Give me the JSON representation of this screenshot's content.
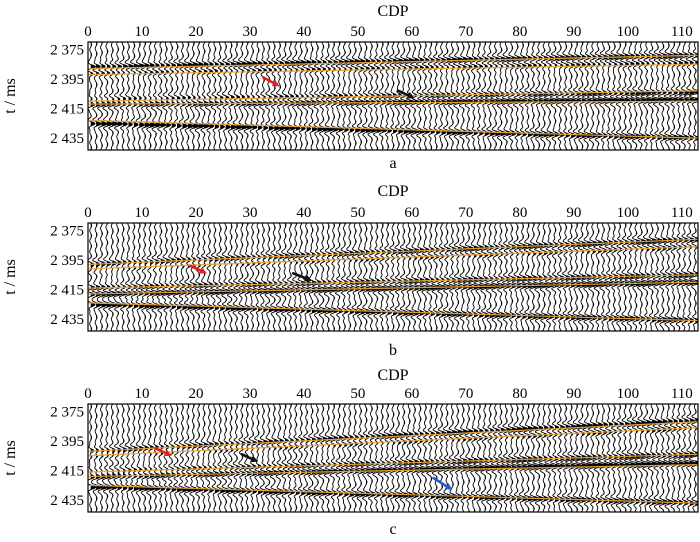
{
  "figure": {
    "x_axis_title": "CDP",
    "y_axis_title": "t / ms",
    "x_ticks": [
      0,
      10,
      20,
      30,
      40,
      50,
      60,
      70,
      80,
      90,
      100,
      110
    ],
    "y_ticks": [
      "2 375",
      "2 395",
      "2 415",
      "2 435"
    ],
    "colors": {
      "horizon": "#e8a13a",
      "trace": "#000000",
      "arrow_red": "#e02020",
      "arrow_black": "#111111",
      "arrow_blue": "#2c55c8"
    }
  },
  "chart_data": [
    {
      "type": "wiggle-trace seismic section",
      "panel_label": "a",
      "xlim": [
        0,
        113
      ],
      "ylim": [
        2370,
        2443
      ],
      "y_inverted": true,
      "trace_count": 113,
      "reflectors": [
        {
          "t_left": 2387,
          "t_right": 2379,
          "amplitude": 1.0
        },
        {
          "t_left": 2391,
          "t_right": 2384,
          "amplitude": 0.6
        },
        {
          "t_left": 2409,
          "t_right": 2404,
          "amplitude": 0.9
        },
        {
          "t_left": 2412,
          "t_right": 2409,
          "amplitude": 1.2
        },
        {
          "t_left": 2425,
          "t_right": 2435,
          "amplitude": 1.0
        }
      ],
      "horizons": [
        {
          "t_left": 2388,
          "t_right": 2379
        },
        {
          "t_left": 2392,
          "t_right": 2385
        },
        {
          "t_left": 2410,
          "t_right": 2403
        },
        {
          "t_left": 2412,
          "t_right": 2410
        },
        {
          "t_left": 2423,
          "t_right": 2435
        }
      ],
      "arrows": [
        {
          "color": "red",
          "cdp_start": 32.5,
          "t_start": 2394,
          "cdp_end": 35.5,
          "t_end": 2400
        },
        {
          "color": "black",
          "cdp_start": 57.5,
          "t_start": 2403,
          "cdp_end": 60.5,
          "t_end": 2408
        }
      ]
    },
    {
      "type": "wiggle-trace seismic section",
      "panel_label": "b",
      "xlim": [
        0,
        113
      ],
      "ylim": [
        2370,
        2443
      ],
      "y_inverted": true,
      "trace_count": 113,
      "reflectors": [
        {
          "t_left": 2398,
          "t_right": 2381,
          "amplitude": 1.0
        },
        {
          "t_left": 2401,
          "t_right": 2386,
          "amplitude": 0.6
        },
        {
          "t_left": 2414,
          "t_right": 2405,
          "amplitude": 0.9
        },
        {
          "t_left": 2418,
          "t_right": 2410,
          "amplitude": 1.2
        },
        {
          "t_left": 2425,
          "t_right": 2436,
          "amplitude": 1.0
        }
      ],
      "horizons": [
        {
          "t_left": 2398,
          "t_right": 2381
        },
        {
          "t_left": 2401,
          "t_right": 2386
        },
        {
          "t_left": 2414,
          "t_right": 2405
        },
        {
          "t_left": 2418,
          "t_right": 2410
        },
        {
          "t_left": 2424,
          "t_right": 2436
        }
      ],
      "arrows": [
        {
          "color": "red",
          "cdp_start": 19,
          "t_start": 2399,
          "cdp_end": 22,
          "t_end": 2404
        },
        {
          "color": "black",
          "cdp_start": 38,
          "t_start": 2404,
          "cdp_end": 41.5,
          "t_end": 2409
        }
      ]
    },
    {
      "type": "wiggle-trace seismic section",
      "panel_label": "c",
      "xlim": [
        0,
        113
      ],
      "ylim": [
        2370,
        2443
      ],
      "y_inverted": true,
      "trace_count": 113,
      "reflectors": [
        {
          "t_left": 2402,
          "t_right": 2381,
          "amplitude": 1.0
        },
        {
          "t_left": 2405,
          "t_right": 2386,
          "amplitude": 0.6
        },
        {
          "t_left": 2416,
          "t_right": 2404,
          "amplitude": 0.9
        },
        {
          "t_left": 2419,
          "t_right": 2410,
          "amplitude": 1.2
        },
        {
          "t_left": 2426,
          "t_right": 2437,
          "amplitude": 1.0
        }
      ],
      "horizons": [
        {
          "t_left": 2402,
          "t_right": 2382
        },
        {
          "t_left": 2405,
          "t_right": 2386
        },
        {
          "t_left": 2416,
          "t_right": 2404
        },
        {
          "t_left": 2419,
          "t_right": 2411
        },
        {
          "t_left": 2425,
          "t_right": 2437
        }
      ],
      "arrows": [
        {
          "color": "red",
          "cdp_start": 12.5,
          "t_start": 2400,
          "cdp_end": 15.5,
          "t_end": 2405
        },
        {
          "color": "black",
          "cdp_start": 28.5,
          "t_start": 2404,
          "cdp_end": 31.5,
          "t_end": 2409
        },
        {
          "color": "blue",
          "cdp_start": 64,
          "t_start": 2420,
          "cdp_end": 67.5,
          "t_end": 2428
        }
      ]
    }
  ]
}
